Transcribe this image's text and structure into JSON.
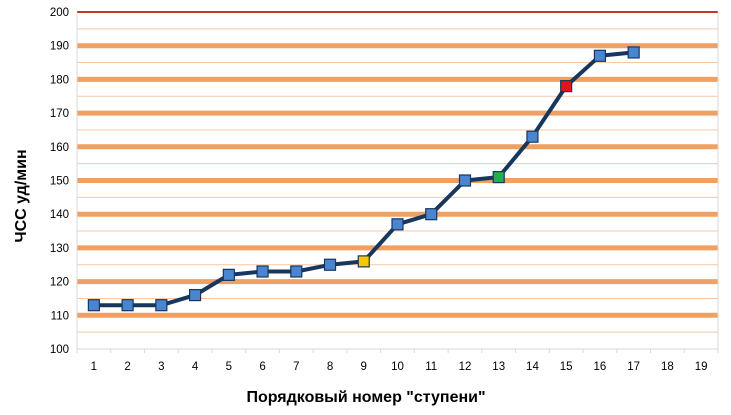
{
  "chart_data": {
    "type": "line",
    "title": "",
    "xlabel": "Порядковый  номер  \"ступени\"",
    "ylabel": "ЧСС уд/мин",
    "x_categories": [
      "1",
      "2",
      "3",
      "4",
      "5",
      "6",
      "7",
      "8",
      "9",
      "10",
      "11",
      "12",
      "13",
      "14",
      "15",
      "16",
      "17",
      "18",
      "19"
    ],
    "yticks": [
      "100",
      "110",
      "120",
      "130",
      "140",
      "150",
      "160",
      "170",
      "180",
      "190",
      "200"
    ],
    "ylim": [
      100,
      200
    ],
    "grid": true,
    "series": [
      {
        "x": [
          1,
          2,
          3,
          4,
          5,
          6,
          7,
          8,
          9,
          10,
          11,
          12,
          13,
          14,
          15,
          16,
          17
        ],
        "values": [
          113,
          113,
          113,
          116,
          122,
          123,
          123,
          125,
          126,
          137,
          140,
          150,
          151,
          163,
          178,
          187,
          188
        ],
        "color": "#17375e"
      }
    ],
    "highlighted_points": [
      {
        "x": 9,
        "color": "#f5c800"
      },
      {
        "x": 13,
        "color": "#22b04a"
      },
      {
        "x": 15,
        "color": "#e0141e"
      }
    ],
    "colors": {
      "major_grid": "#f0a060",
      "minor_grid": "#f5c9a5",
      "line": "#17375e",
      "marker": "#4a86d0",
      "frame": "#d9d9d9"
    }
  }
}
